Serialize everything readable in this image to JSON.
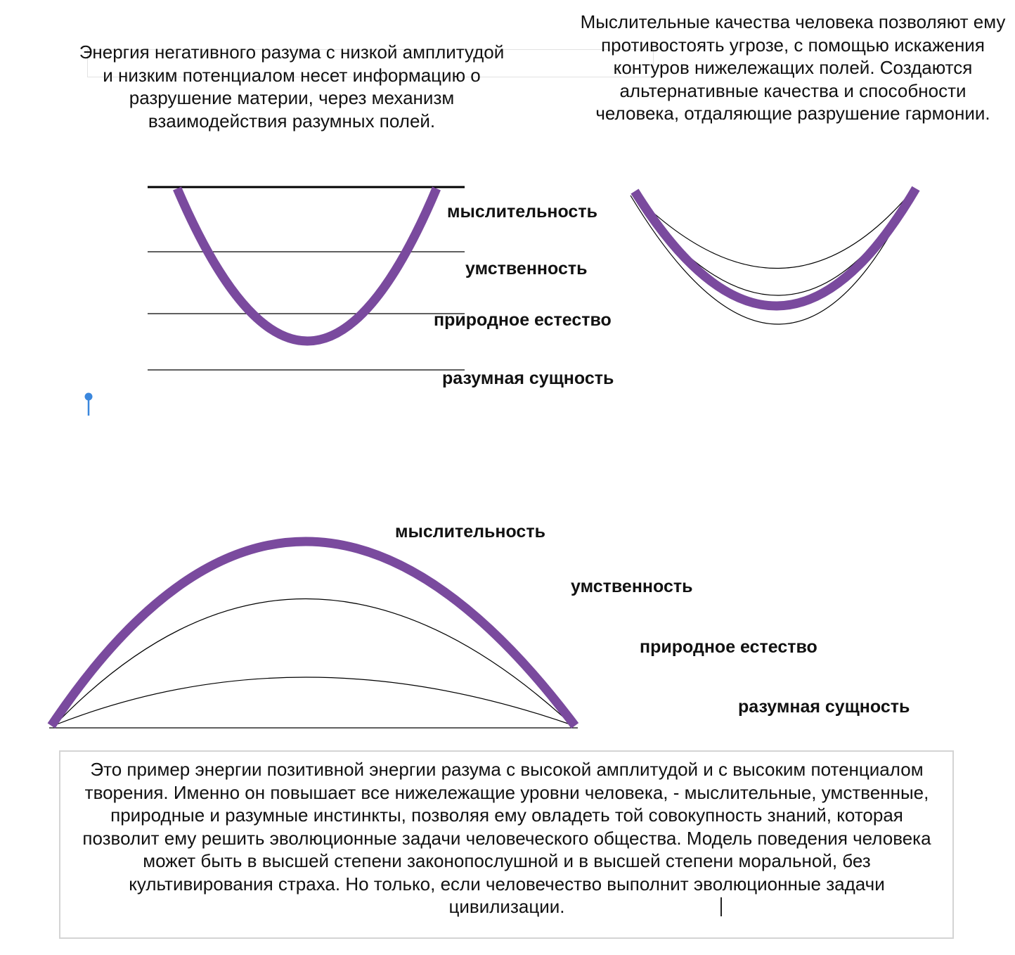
{
  "texts": {
    "top_left": "Энергия негативного разума с низкой амплитудой и низким потенциалом несет информацию о разрушение материи, через механизм взаимодействия разумных полей.",
    "top_right": "Мыслительные качества человека позволяют ему противостоять угрозе, с помощью искажения контуров нижележащих полей. Создаются альтернативные качества и способности человека, отдаляющие разрушение гармонии.",
    "bottom": "Это пример энергии позитивной энергии разума с высокой амплитудой и с высоким потенциалом творения. Именно он повышает все нижележащие уровни человека, - мыслительные, умственные, природные и разумные инстинкты, позволяя ему овладеть той совокупность знаний, которая позволит ему решить эволюционные задачи человеческого общества. Модель поведения человека может быть в высшей степени законопослушной и в высшей степени моральной, без культивирования страха. Но только, если человечество выполнит эволюционные задачи цивилизации."
  },
  "diagram1_labels": {
    "level1": "мыслительность",
    "level2": "умственность",
    "level3": "природное естество",
    "level4": "разумная сущность"
  },
  "diagram3_labels": {
    "level1": "мыслительность",
    "level2": "умственность",
    "level3": "природное естество",
    "level4": "разумная сущность"
  },
  "colors": {
    "curve": "#7a4a9e",
    "line": "#000000",
    "pin": "#3b87dd",
    "frame": "#d4d4d4"
  },
  "icons": {
    "pin": "text-insertion-pin-icon"
  }
}
